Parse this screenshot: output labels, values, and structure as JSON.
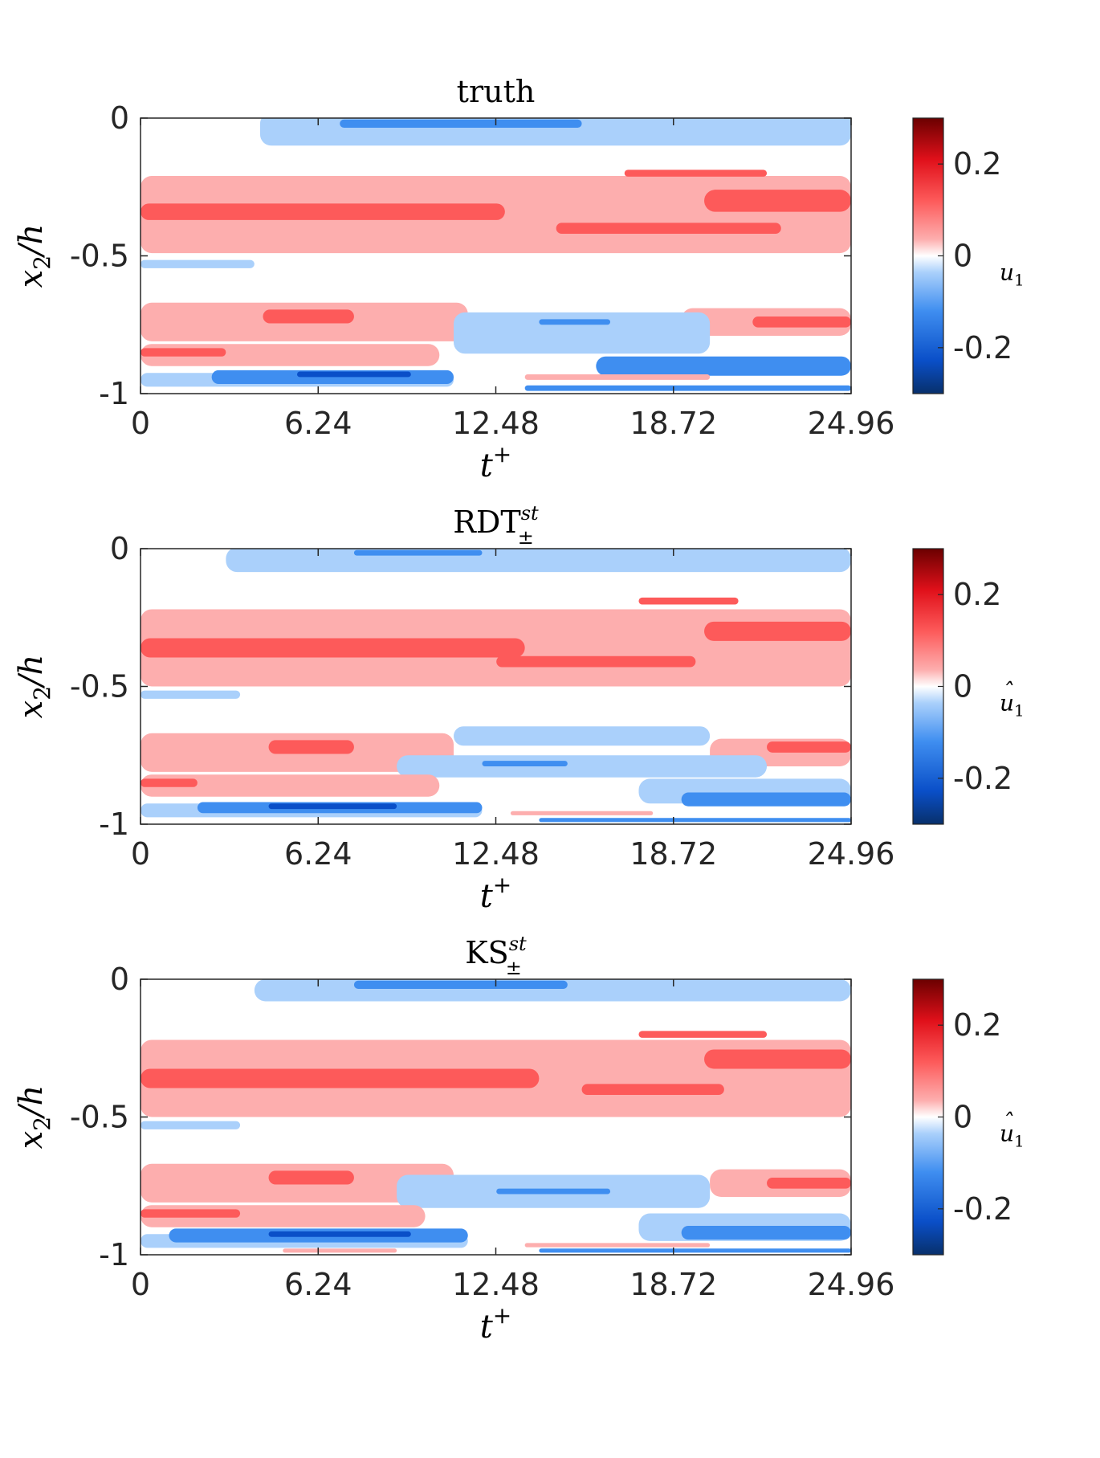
{
  "colors": {
    "strong_red": "#d7191c",
    "mid_red": "#fd5a5a",
    "light_red": "#fdaeae",
    "light_blue": "#aad0fb",
    "mid_blue": "#3f8ef0",
    "strong_blue": "#0a4fc8"
  },
  "chart_data": [
    {
      "type": "heatmap",
      "title": "truth",
      "xlabel": "t",
      "xlabel_sup": "+",
      "ylabel": "x",
      "ylabel_sub": "2",
      "ylabel_tail": "/h",
      "xlim": [
        0,
        24.96
      ],
      "ylim": [
        -1,
        0
      ],
      "xticks": [
        "0",
        "6.24",
        "12.48",
        "18.72",
        "24.96"
      ],
      "yticks": [
        "0",
        "-0.5",
        "-1"
      ],
      "colorbar": {
        "label": "u",
        "label_sub": "1",
        "hat": false,
        "clim": [
          -0.3,
          0.3
        ],
        "ticks": [
          "0.2",
          "0",
          "-0.2"
        ]
      },
      "regions": [
        {
          "level": "light_blue",
          "t0": 4.2,
          "t1": 24.96,
          "y": -0.04,
          "h": 0.12
        },
        {
          "level": "mid_blue",
          "t0": 7.0,
          "t1": 15.5,
          "y": -0.02,
          "h": 0.03
        },
        {
          "level": "light_red",
          "t0": 0,
          "t1": 24.96,
          "y": -0.35,
          "h": 0.28
        },
        {
          "level": "mid_red",
          "t0": 0,
          "t1": 12.8,
          "y": -0.34,
          "h": 0.06
        },
        {
          "level": "mid_red",
          "t0": 14.6,
          "t1": 22.5,
          "y": -0.4,
          "h": 0.04
        },
        {
          "level": "mid_red",
          "t0": 19.8,
          "t1": 24.96,
          "y": -0.3,
          "h": 0.08
        },
        {
          "level": "mid_red",
          "t0": 17.0,
          "t1": 22.0,
          "y": -0.2,
          "h": 0.025
        },
        {
          "level": "light_blue",
          "t0": 0,
          "t1": 4.0,
          "y": -0.53,
          "h": 0.03
        },
        {
          "level": "light_red",
          "t0": 0,
          "t1": 11.5,
          "y": -0.74,
          "h": 0.14
        },
        {
          "level": "light_red",
          "t0": 19.0,
          "t1": 24.96,
          "y": -0.74,
          "h": 0.1
        },
        {
          "level": "mid_red",
          "t0": 4.3,
          "t1": 7.5,
          "y": -0.72,
          "h": 0.05
        },
        {
          "level": "mid_red",
          "t0": 21.5,
          "t1": 24.96,
          "y": -0.74,
          "h": 0.04
        },
        {
          "level": "light_blue",
          "t0": 11.0,
          "t1": 20.0,
          "y": -0.78,
          "h": 0.15
        },
        {
          "level": "mid_blue",
          "t0": 14.0,
          "t1": 16.5,
          "y": -0.74,
          "h": 0.02
        },
        {
          "level": "light_red",
          "t0": 0,
          "t1": 10.5,
          "y": -0.86,
          "h": 0.08
        },
        {
          "level": "mid_red",
          "t0": 0,
          "t1": 3.0,
          "y": -0.85,
          "h": 0.03
        },
        {
          "level": "mid_blue",
          "t0": 16.0,
          "t1": 24.96,
          "y": -0.9,
          "h": 0.07
        },
        {
          "level": "light_blue",
          "t0": 0,
          "t1": 11.0,
          "y": -0.95,
          "h": 0.05
        },
        {
          "level": "mid_blue",
          "t0": 2.5,
          "t1": 11.0,
          "y": -0.94,
          "h": 0.05
        },
        {
          "level": "strong_blue",
          "t0": 5.5,
          "t1": 9.5,
          "y": -0.93,
          "h": 0.02
        },
        {
          "level": "light_red",
          "t0": 13.5,
          "t1": 20.0,
          "y": -0.94,
          "h": 0.02
        },
        {
          "level": "mid_blue",
          "t0": 13.5,
          "t1": 24.96,
          "y": -0.98,
          "h": 0.02
        }
      ]
    },
    {
      "type": "heatmap",
      "title": "RDT",
      "title_sup": "st",
      "title_sub": "±",
      "xlabel": "t",
      "xlabel_sup": "+",
      "ylabel": "x",
      "ylabel_sub": "2",
      "ylabel_tail": "/h",
      "xlim": [
        0,
        24.96
      ],
      "ylim": [
        -1,
        0
      ],
      "xticks": [
        "0",
        "6.24",
        "12.48",
        "18.72",
        "24.96"
      ],
      "yticks": [
        "0",
        "-0.5",
        "-1"
      ],
      "colorbar": {
        "label": "u",
        "label_sub": "1",
        "hat": true,
        "clim": [
          -0.3,
          0.3
        ],
        "ticks": [
          "0.2",
          "0",
          "-0.2"
        ]
      },
      "regions": [
        {
          "level": "light_blue",
          "t0": 3.0,
          "t1": 24.96,
          "y": -0.04,
          "h": 0.09
        },
        {
          "level": "mid_blue",
          "t0": 7.5,
          "t1": 12.0,
          "y": -0.015,
          "h": 0.02
        },
        {
          "level": "light_red",
          "t0": 0,
          "t1": 24.96,
          "y": -0.36,
          "h": 0.28
        },
        {
          "level": "mid_red",
          "t0": 0,
          "t1": 13.5,
          "y": -0.36,
          "h": 0.07
        },
        {
          "level": "mid_red",
          "t0": 12.5,
          "t1": 19.5,
          "y": -0.41,
          "h": 0.04
        },
        {
          "level": "mid_red",
          "t0": 19.8,
          "t1": 24.96,
          "y": -0.3,
          "h": 0.07
        },
        {
          "level": "mid_red",
          "t0": 17.5,
          "t1": 21.0,
          "y": -0.19,
          "h": 0.025
        },
        {
          "level": "light_blue",
          "t0": 0,
          "t1": 3.5,
          "y": -0.53,
          "h": 0.03
        },
        {
          "level": "light_red",
          "t0": 0,
          "t1": 11.0,
          "y": -0.74,
          "h": 0.14
        },
        {
          "level": "light_red",
          "t0": 20.0,
          "t1": 24.96,
          "y": -0.74,
          "h": 0.1
        },
        {
          "level": "mid_red",
          "t0": 4.5,
          "t1": 7.5,
          "y": -0.72,
          "h": 0.05
        },
        {
          "level": "mid_red",
          "t0": 22.0,
          "t1": 24.96,
          "y": -0.72,
          "h": 0.04
        },
        {
          "level": "light_blue",
          "t0": 11.0,
          "t1": 20.0,
          "y": -0.68,
          "h": 0.07
        },
        {
          "level": "light_blue",
          "t0": 9.0,
          "t1": 22.0,
          "y": -0.79,
          "h": 0.08
        },
        {
          "level": "mid_blue",
          "t0": 12.0,
          "t1": 15.0,
          "y": -0.78,
          "h": 0.02
        },
        {
          "level": "light_red",
          "t0": 0,
          "t1": 10.5,
          "y": -0.86,
          "h": 0.08
        },
        {
          "level": "mid_red",
          "t0": 0,
          "t1": 2.0,
          "y": -0.85,
          "h": 0.03
        },
        {
          "level": "light_blue",
          "t0": 17.5,
          "t1": 24.96,
          "y": -0.88,
          "h": 0.09
        },
        {
          "level": "mid_blue",
          "t0": 19.0,
          "t1": 24.96,
          "y": -0.91,
          "h": 0.05
        },
        {
          "level": "light_blue",
          "t0": 0,
          "t1": 12.0,
          "y": -0.95,
          "h": 0.05
        },
        {
          "level": "mid_blue",
          "t0": 2.0,
          "t1": 12.0,
          "y": -0.94,
          "h": 0.04
        },
        {
          "level": "strong_blue",
          "t0": 4.5,
          "t1": 9.0,
          "y": -0.935,
          "h": 0.02
        },
        {
          "level": "light_red",
          "t0": 13.0,
          "t1": 18.0,
          "y": -0.96,
          "h": 0.015
        },
        {
          "level": "mid_blue",
          "t0": 14.0,
          "t1": 24.96,
          "y": -0.985,
          "h": 0.015
        }
      ]
    },
    {
      "type": "heatmap",
      "title": "KS",
      "title_sup": "st",
      "title_sub": "±",
      "xlabel": "t",
      "xlabel_sup": "+",
      "ylabel": "x",
      "ylabel_sub": "2",
      "ylabel_tail": "/h",
      "xlim": [
        0,
        24.96
      ],
      "ylim": [
        -1,
        0
      ],
      "xticks": [
        "0",
        "6.24",
        "12.48",
        "18.72",
        "24.96"
      ],
      "yticks": [
        "0",
        "-0.5",
        "-1"
      ],
      "colorbar": {
        "label": "u",
        "label_sub": "1",
        "hat": true,
        "clim": [
          -0.3,
          0.3
        ],
        "ticks": [
          "0.2",
          "0",
          "-0.2"
        ]
      },
      "regions": [
        {
          "level": "light_blue",
          "t0": 4.0,
          "t1": 24.96,
          "y": -0.04,
          "h": 0.08
        },
        {
          "level": "mid_blue",
          "t0": 7.5,
          "t1": 15.0,
          "y": -0.02,
          "h": 0.03
        },
        {
          "level": "light_red",
          "t0": 0,
          "t1": 24.96,
          "y": -0.36,
          "h": 0.28
        },
        {
          "level": "mid_red",
          "t0": 0,
          "t1": 14.0,
          "y": -0.36,
          "h": 0.07
        },
        {
          "level": "mid_red",
          "t0": 15.5,
          "t1": 20.5,
          "y": -0.4,
          "h": 0.04
        },
        {
          "level": "mid_red",
          "t0": 19.8,
          "t1": 24.96,
          "y": -0.29,
          "h": 0.07
        },
        {
          "level": "mid_red",
          "t0": 17.5,
          "t1": 22.0,
          "y": -0.2,
          "h": 0.025
        },
        {
          "level": "light_blue",
          "t0": 0,
          "t1": 3.5,
          "y": -0.53,
          "h": 0.03
        },
        {
          "level": "light_red",
          "t0": 0,
          "t1": 11.0,
          "y": -0.74,
          "h": 0.14
        },
        {
          "level": "light_red",
          "t0": 20.0,
          "t1": 24.96,
          "y": -0.74,
          "h": 0.1
        },
        {
          "level": "mid_red",
          "t0": 4.5,
          "t1": 7.5,
          "y": -0.72,
          "h": 0.05
        },
        {
          "level": "mid_red",
          "t0": 22.0,
          "t1": 24.96,
          "y": -0.74,
          "h": 0.04
        },
        {
          "level": "light_blue",
          "t0": 9.0,
          "t1": 20.0,
          "y": -0.77,
          "h": 0.12
        },
        {
          "level": "mid_blue",
          "t0": 12.5,
          "t1": 16.5,
          "y": -0.77,
          "h": 0.02
        },
        {
          "level": "light_red",
          "t0": 0,
          "t1": 10.0,
          "y": -0.86,
          "h": 0.08
        },
        {
          "level": "mid_red",
          "t0": 0,
          "t1": 3.5,
          "y": -0.85,
          "h": 0.03
        },
        {
          "level": "light_blue",
          "t0": 17.5,
          "t1": 24.96,
          "y": -0.9,
          "h": 0.1
        },
        {
          "level": "mid_blue",
          "t0": 19.0,
          "t1": 24.96,
          "y": -0.92,
          "h": 0.05
        },
        {
          "level": "light_blue",
          "t0": 0,
          "t1": 11.5,
          "y": -0.95,
          "h": 0.05
        },
        {
          "level": "mid_blue",
          "t0": 1.0,
          "t1": 11.5,
          "y": -0.93,
          "h": 0.05
        },
        {
          "level": "strong_blue",
          "t0": 4.5,
          "t1": 9.5,
          "y": -0.925,
          "h": 0.02
        },
        {
          "level": "light_red",
          "t0": 5.0,
          "t1": 9.0,
          "y": -0.985,
          "h": 0.015
        },
        {
          "level": "light_red",
          "t0": 13.5,
          "t1": 20.0,
          "y": -0.965,
          "h": 0.015
        },
        {
          "level": "mid_blue",
          "t0": 14.0,
          "t1": 24.96,
          "y": -0.985,
          "h": 0.015
        }
      ]
    }
  ]
}
